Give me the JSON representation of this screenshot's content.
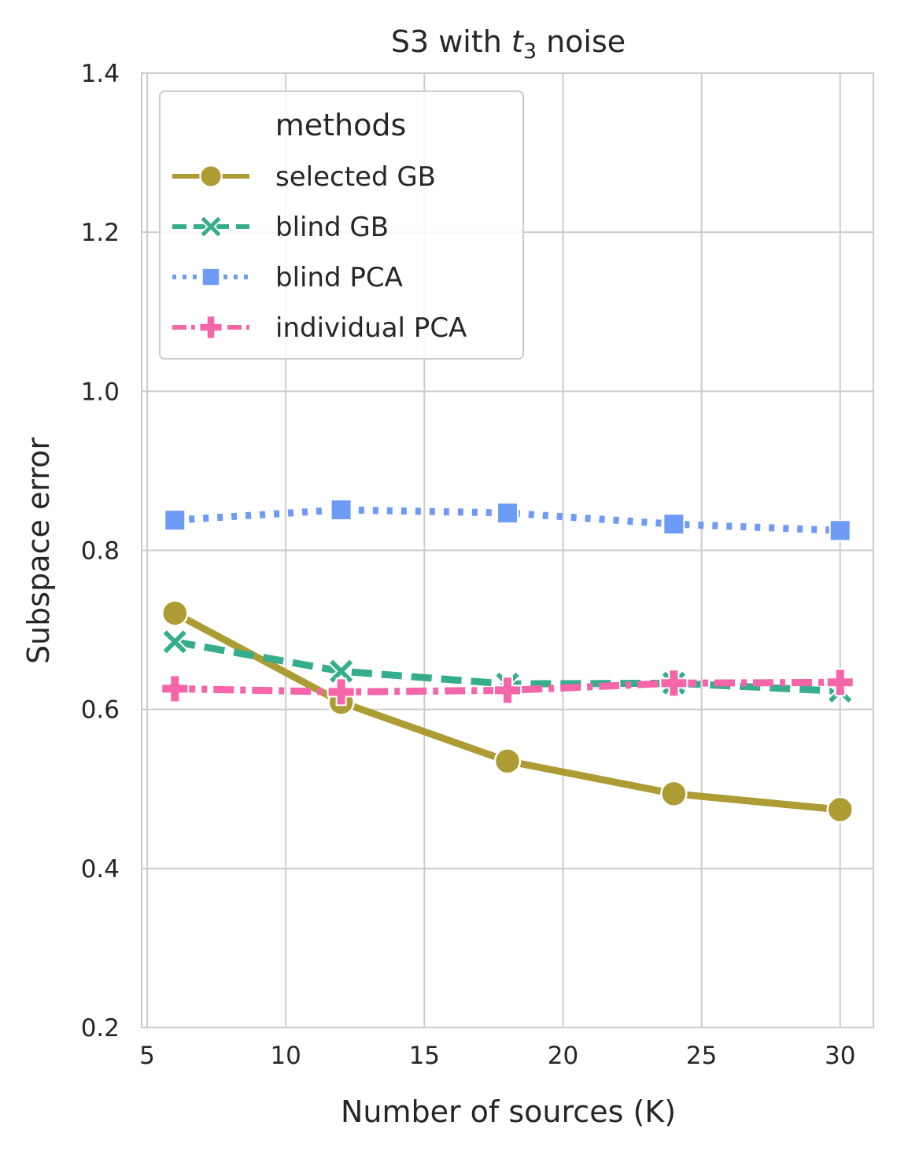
{
  "chart_data": {
    "type": "line",
    "title_parts": {
      "prefix": "S3 with ",
      "var": "t",
      "sub": "3",
      "suffix": " noise"
    },
    "xlabel": "Number of sources (K)",
    "ylabel": "Subspace error",
    "xlim": [
      4.8,
      31.2
    ],
    "ylim": [
      0.2,
      1.4
    ],
    "xticks": [
      5,
      10,
      15,
      20,
      25,
      30
    ],
    "xtick_labels": [
      "5",
      "10",
      "15",
      "20",
      "25",
      "30"
    ],
    "yticks": [
      0.2,
      0.4,
      0.6,
      0.8,
      1.0,
      1.2,
      1.4
    ],
    "ytick_labels": [
      "0.2",
      "0.4",
      "0.6",
      "0.8",
      "1.0",
      "1.2",
      "1.4"
    ],
    "grid": true,
    "legend": {
      "title": "methods",
      "position": "top-left"
    },
    "x": [
      6,
      12,
      18,
      24,
      30
    ],
    "series": [
      {
        "name": "selected GB",
        "values": [
          0.721,
          0.609,
          0.535,
          0.494,
          0.474
        ],
        "color": "#ad9b33",
        "linestyle": "solid",
        "marker": "circle"
      },
      {
        "name": "blind GB",
        "values": [
          0.685,
          0.648,
          0.632,
          0.633,
          0.623
        ],
        "color": "#36ad8c",
        "linestyle": "dashed",
        "marker": "x"
      },
      {
        "name": "blind PCA",
        "values": [
          0.838,
          0.851,
          0.847,
          0.833,
          0.825
        ],
        "color": "#6e9bf5",
        "linestyle": "dotted",
        "marker": "square"
      },
      {
        "name": "individual PCA",
        "values": [
          0.626,
          0.622,
          0.624,
          0.633,
          0.634
        ],
        "color": "#f565aa",
        "linestyle": "dashdot",
        "marker": "plus"
      }
    ]
  }
}
